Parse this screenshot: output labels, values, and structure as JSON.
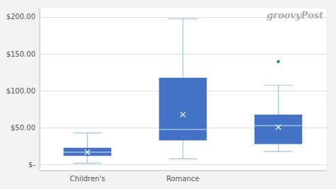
{
  "chart_data": {
    "type": "box",
    "categories": [
      "Children's",
      "Romance",
      null
    ],
    "boxes": [
      {
        "whisker_low": 2,
        "q1": 12,
        "median": 17,
        "q3": 23,
        "whisker_high": 43,
        "mean": 17,
        "fliers": []
      },
      {
        "whisker_low": 8,
        "q1": 33,
        "median": 48,
        "q3": 118,
        "whisker_high": 198,
        "mean": 68,
        "fliers": []
      },
      {
        "whisker_low": 18,
        "q1": 28,
        "median": 53,
        "q3": 68,
        "whisker_high": 108,
        "mean": 51,
        "fliers": [
          140
        ]
      }
    ],
    "color": "#4472C4",
    "marker": "x",
    "ylim": [
      -8,
      212
    ],
    "yticks": [
      {
        "value": 0,
        "label": "$-"
      },
      {
        "value": 50,
        "label": "$50.00"
      },
      {
        "value": 100,
        "label": "$100.00"
      },
      {
        "value": 150,
        "label": "$150.00"
      },
      {
        "value": 200,
        "label": "$200.00"
      }
    ],
    "grid": true,
    "annotations": [
      "groovyPost"
    ]
  }
}
